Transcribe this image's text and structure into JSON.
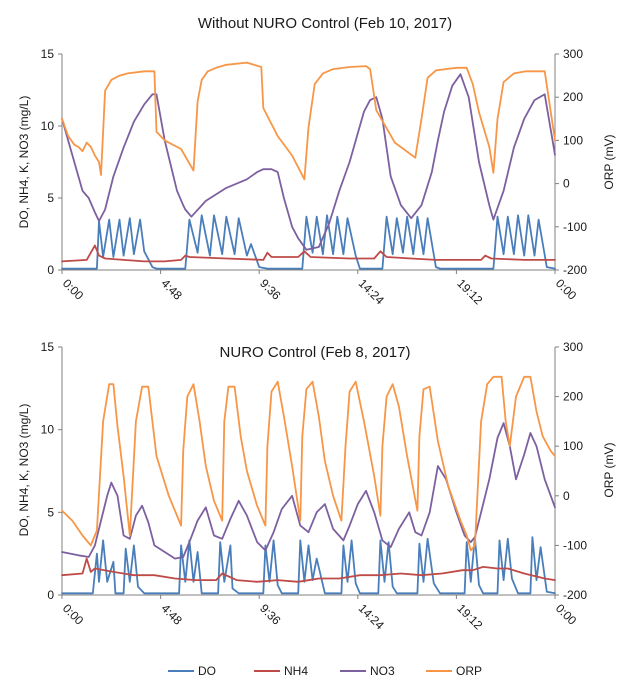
{
  "chart_data": [
    {
      "type": "line",
      "title": "Without NURO Control (Feb 10, 2017)",
      "ylabel": "DO, NH4, K, NO3 (mg/L)",
      "y2label": "ORP (mV)",
      "ylim": [
        0,
        15
      ],
      "y2lim": [
        -200,
        300
      ],
      "yticks": [
        "0",
        "5",
        "10",
        "15"
      ],
      "y2ticks": [
        "-200",
        "-100",
        "0",
        "100",
        "200",
        "300"
      ],
      "xlim": [
        0,
        24
      ],
      "xticks": [
        "0:00",
        "4:48",
        "9:36",
        "14:24",
        "19:12",
        "0:00"
      ],
      "series": [
        {
          "name": "DO",
          "color": "#4a7ebb",
          "axis": "left",
          "x": [
            0,
            1.7,
            1.8,
            2.0,
            2.3,
            2.5,
            2.8,
            3.0,
            3.3,
            3.5,
            3.8,
            4.0,
            4.4,
            4.6,
            6.0,
            6.2,
            6.6,
            6.8,
            7.2,
            7.4,
            7.8,
            8.0,
            8.4,
            8.6,
            9.0,
            9.2,
            9.6,
            10.0,
            11.7,
            11.9,
            12.2,
            12.4,
            12.7,
            12.9,
            13.2,
            13.4,
            13.7,
            13.9,
            14.3,
            14.5,
            15.6,
            15.8,
            16.1,
            16.3,
            16.6,
            16.8,
            17.1,
            17.3,
            17.6,
            17.8,
            18.2,
            18.4,
            21.0,
            21.2,
            21.5,
            21.7,
            22.0,
            22.2,
            22.5,
            22.7,
            23.0,
            23.2,
            23.6,
            24
          ],
          "y": [
            0.1,
            0.1,
            3.4,
            0.9,
            3.5,
            0.9,
            3.5,
            1.0,
            3.6,
            1.1,
            3.5,
            1.3,
            0.2,
            0.1,
            0.1,
            3.5,
            1.2,
            3.8,
            1.0,
            3.8,
            1.1,
            3.7,
            1.1,
            3.6,
            1.0,
            1.8,
            0.2,
            0.1,
            0.1,
            3.7,
            1.2,
            3.7,
            1.1,
            3.8,
            1.1,
            3.7,
            1.1,
            3.6,
            1.0,
            0.1,
            0.1,
            3.7,
            1.1,
            3.6,
            1.2,
            3.7,
            1.1,
            3.7,
            1.1,
            3.6,
            0.2,
            0.1,
            0.1,
            3.7,
            1.1,
            3.7,
            1.1,
            3.8,
            1.0,
            3.8,
            1.0,
            3.5,
            0.2,
            0.1
          ]
        },
        {
          "name": "NH4",
          "color": "#be4b48",
          "axis": "left",
          "x": [
            0,
            1.2,
            1.6,
            1.8,
            2.1,
            3,
            4,
            5,
            5.8,
            6.0,
            6.2,
            8,
            9.8,
            10.0,
            10.2,
            11.5,
            11.8,
            12.1,
            14,
            15.2,
            15.5,
            15.8,
            17,
            18.2,
            20.4,
            20.6,
            20.9,
            22.5,
            24
          ],
          "y": [
            0.6,
            0.7,
            1.7,
            1.0,
            0.8,
            0.7,
            0.6,
            0.6,
            0.7,
            1.0,
            0.9,
            0.8,
            0.7,
            1.2,
            0.9,
            0.9,
            1.3,
            0.9,
            0.8,
            0.8,
            1.3,
            0.9,
            0.8,
            0.7,
            0.7,
            1.0,
            0.8,
            0.7,
            0.7
          ]
        },
        {
          "name": "NO3",
          "color": "#7d60a0",
          "axis": "left",
          "x": [
            0,
            0.4,
            0.8,
            1.0,
            1.3,
            1.6,
            1.8,
            2.1,
            2.5,
            3.0,
            3.5,
            4.0,
            4.4,
            4.6,
            5.0,
            5.6,
            5.9,
            6.0,
            6.3,
            7.0,
            8.0,
            9.0,
            9.5,
            9.8,
            10.2,
            10.5,
            10.8,
            11.2,
            11.5,
            11.9,
            12.5,
            13.0,
            13.5,
            14.0,
            14.4,
            14.7,
            15.0,
            15.3,
            15.6,
            16.0,
            16.5,
            17.0,
            17.5,
            18.0,
            18.3,
            18.6,
            19.0,
            19.4,
            19.8,
            20.3,
            20.8,
            21.0,
            21.5,
            22.0,
            22.5,
            23.0,
            23.5,
            24
          ],
          "y": [
            10.5,
            8.5,
            6.5,
            5.5,
            5.0,
            4.0,
            3.4,
            4.2,
            6.5,
            8.5,
            10.3,
            11.5,
            12.2,
            12.2,
            9.0,
            5.5,
            4.5,
            4.2,
            3.7,
            4.8,
            5.7,
            6.3,
            6.8,
            7.0,
            7.0,
            6.8,
            5.0,
            3.0,
            2.2,
            1.4,
            1.6,
            3.2,
            5.5,
            7.5,
            9.5,
            11.0,
            11.8,
            12.0,
            10.5,
            6.5,
            4.5,
            3.6,
            4.5,
            6.8,
            9.0,
            11.0,
            12.8,
            13.6,
            12.0,
            7.5,
            4.5,
            3.5,
            5.5,
            8.5,
            10.5,
            11.8,
            12.2,
            8.0
          ]
        },
        {
          "name": "ORP",
          "color": "#f79646",
          "axis": "right",
          "x": [
            0,
            0.3,
            0.6,
            0.8,
            1.0,
            1.2,
            1.4,
            1.6,
            1.8,
            1.9,
            2.1,
            2.4,
            2.8,
            3.2,
            4.0,
            4.5,
            4.6,
            5.0,
            5.8,
            6.4,
            6.6,
            6.8,
            7.1,
            7.5,
            8.0,
            9.0,
            9.7,
            9.8,
            10.5,
            11.2,
            11.8,
            12.0,
            12.3,
            12.7,
            13.2,
            14.0,
            14.8,
            15.0,
            15.3,
            16.2,
            17.2,
            17.5,
            17.8,
            18.2,
            19.2,
            19.7,
            20.0,
            20.3,
            20.8,
            21.0,
            21.2,
            21.5,
            22.0,
            22.6,
            23.5,
            24
          ],
          "y": [
            150,
            110,
            90,
            85,
            75,
            95,
            85,
            65,
            50,
            20,
            215,
            240,
            250,
            255,
            260,
            260,
            120,
            100,
            80,
            30,
            190,
            240,
            260,
            268,
            275,
            280,
            270,
            175,
            110,
            65,
            10,
            130,
            230,
            255,
            265,
            270,
            272,
            265,
            170,
            95,
            60,
            150,
            245,
            262,
            268,
            268,
            230,
            165,
            85,
            25,
            150,
            235,
            255,
            260,
            260,
            100
          ]
        }
      ]
    },
    {
      "type": "line",
      "title": "NURO Control (Feb 8, 2017)",
      "ylabel": "DO, NH4, K, NO3 (mg/L)",
      "y2label": "ORP (mV)",
      "ylim": [
        0,
        15
      ],
      "y2lim": [
        -200,
        300
      ],
      "yticks": [
        "0",
        "5",
        "10",
        "15"
      ],
      "y2ticks": [
        "-200",
        "-100",
        "0",
        "100",
        "200",
        "300"
      ],
      "xlim": [
        0,
        24
      ],
      "xticks": [
        "0:00",
        "4:48",
        "9:36",
        "14:24",
        "19:12",
        "0:00"
      ],
      "series": [
        {
          "name": "DO",
          "color": "#4a7ebb",
          "axis": "left",
          "x": [
            0,
            1.5,
            1.7,
            1.8,
            2.0,
            2.2,
            2.5,
            2.6,
            3.0,
            3.1,
            3.3,
            3.5,
            3.7,
            4.0,
            5.7,
            5.8,
            6.0,
            6.2,
            6.4,
            6.6,
            6.8,
            7.6,
            7.7,
            7.9,
            8.2,
            8.3,
            8.6,
            9.8,
            9.9,
            10.1,
            10.3,
            10.5,
            10.7,
            11.5,
            11.6,
            11.8,
            12.0,
            12.2,
            12.4,
            12.8,
            13.6,
            13.7,
            13.9,
            14.1,
            14.3,
            14.5,
            15.4,
            15.5,
            15.7,
            15.9,
            16.1,
            16.3,
            17.3,
            17.4,
            17.6,
            17.8,
            18.1,
            18.4,
            19.6,
            19.7,
            19.9,
            20.1,
            20.3,
            20.5,
            21.2,
            21.3,
            21.5,
            21.7,
            21.9,
            22.2,
            22.8,
            22.9,
            23.1,
            23.3,
            23.6,
            24
          ],
          "y": [
            0.1,
            0.1,
            2.5,
            0.8,
            3.3,
            0.8,
            2.0,
            0.1,
            0.1,
            2.8,
            0.8,
            3.0,
            0.5,
            0.1,
            0.1,
            3.0,
            0.8,
            3.3,
            0.8,
            2.6,
            0.1,
            0.1,
            3.2,
            0.8,
            3.0,
            0.4,
            0.1,
            0.1,
            3.0,
            0.8,
            3.3,
            0.6,
            0.1,
            0.1,
            3.3,
            0.8,
            3.0,
            0.9,
            2.2,
            0.1,
            0.1,
            3.0,
            0.8,
            3.3,
            0.7,
            0.1,
            0.1,
            3.3,
            0.8,
            3.2,
            0.5,
            0.1,
            0.1,
            3.1,
            0.8,
            3.4,
            0.7,
            0.1,
            0.1,
            3.2,
            0.8,
            3.5,
            0.6,
            0.1,
            0.1,
            3.3,
            0.9,
            3.4,
            1.0,
            0.1,
            0.1,
            3.5,
            0.9,
            2.9,
            0.2,
            0.1
          ]
        },
        {
          "name": "NH4",
          "color": "#be4b48",
          "axis": "left",
          "x": [
            0,
            1.0,
            1.2,
            1.4,
            1.6,
            2.5,
            3.5,
            4.5,
            5.5,
            6.5,
            7.5,
            7.8,
            8.5,
            9.5,
            10.5,
            11.5,
            12.5,
            13.5,
            14.5,
            15.5,
            16.5,
            17.5,
            18.5,
            19.5,
            20.0,
            20.5,
            21.2,
            21.7,
            22.5,
            23.5,
            24
          ],
          "y": [
            1.2,
            1.3,
            2.2,
            1.4,
            1.6,
            1.4,
            1.2,
            1.2,
            1.0,
            0.9,
            0.9,
            1.3,
            0.9,
            0.8,
            0.9,
            0.8,
            1.0,
            1.0,
            1.2,
            1.2,
            1.3,
            1.2,
            1.3,
            1.5,
            1.5,
            1.7,
            1.6,
            1.6,
            1.3,
            1.0,
            0.9
          ]
        },
        {
          "name": "NO3",
          "color": "#7d60a0",
          "axis": "left",
          "x": [
            0,
            0.8,
            1.3,
            1.6,
            1.9,
            2.2,
            2.4,
            2.7,
            3.0,
            3.3,
            3.6,
            3.9,
            4.2,
            4.5,
            5.0,
            5.5,
            5.9,
            6.2,
            6.6,
            7.0,
            7.4,
            7.8,
            8.2,
            8.6,
            9.0,
            9.5,
            9.9,
            10.3,
            10.7,
            11.2,
            11.6,
            12.0,
            12.4,
            12.8,
            13.2,
            13.7,
            14.0,
            14.4,
            14.8,
            15.2,
            15.6,
            16.0,
            16.4,
            16.9,
            17.2,
            17.5,
            17.9,
            18.3,
            18.7,
            19.2,
            19.6,
            19.9,
            20.1,
            20.4,
            20.8,
            21.2,
            21.5,
            21.8,
            22.1,
            22.5,
            22.8,
            23.1,
            23.5,
            24
          ],
          "y": [
            2.6,
            2.4,
            2.3,
            3.0,
            4.5,
            6.0,
            6.8,
            6.0,
            3.6,
            3.4,
            4.8,
            5.4,
            4.4,
            3.0,
            2.6,
            2.2,
            2.3,
            3.2,
            4.5,
            5.3,
            3.6,
            3.4,
            4.6,
            5.7,
            4.8,
            3.2,
            2.7,
            3.8,
            5.2,
            6.0,
            4.2,
            3.8,
            5.0,
            5.5,
            4.0,
            3.3,
            4.2,
            5.5,
            6.3,
            5.0,
            3.3,
            2.9,
            4.0,
            5.0,
            3.8,
            3.6,
            5.0,
            7.8,
            7.0,
            5.0,
            3.6,
            3.2,
            3.5,
            5.0,
            7.0,
            9.5,
            10.4,
            9.0,
            7.0,
            8.5,
            9.8,
            9.0,
            7.0,
            5.3
          ]
        },
        {
          "name": "ORP",
          "color": "#f79646",
          "axis": "right",
          "x": [
            0,
            0.5,
            1.0,
            1.4,
            1.7,
            2.0,
            2.3,
            2.5,
            2.7,
            3.0,
            3.3,
            3.6,
            3.9,
            4.2,
            4.6,
            5.2,
            5.8,
            5.9,
            6.1,
            6.4,
            6.7,
            7.0,
            7.4,
            7.8,
            7.9,
            8.1,
            8.4,
            8.7,
            9.0,
            9.5,
            9.9,
            10.0,
            10.2,
            10.5,
            10.8,
            11.2,
            11.6,
            11.7,
            11.9,
            12.2,
            12.5,
            12.8,
            13.2,
            13.6,
            13.8,
            14.0,
            14.3,
            14.7,
            15.2,
            15.5,
            15.6,
            15.8,
            16.1,
            16.4,
            16.8,
            17.3,
            17.4,
            17.6,
            17.9,
            18.3,
            18.8,
            19.4,
            19.7,
            19.9,
            20.1,
            20.4,
            20.7,
            21.0,
            21.4,
            21.6,
            21.8,
            22.1,
            22.5,
            22.8,
            23.1,
            23.4,
            23.8,
            24
          ],
          "y": [
            -30,
            -50,
            -80,
            -100,
            -70,
            150,
            225,
            225,
            140,
            40,
            -80,
            150,
            220,
            220,
            80,
            0,
            -60,
            90,
            200,
            225,
            150,
            60,
            -10,
            -50,
            150,
            220,
            220,
            120,
            50,
            -20,
            -60,
            100,
            210,
            230,
            160,
            60,
            -50,
            120,
            215,
            230,
            160,
            70,
            0,
            -50,
            100,
            210,
            230,
            150,
            40,
            -40,
            100,
            200,
            225,
            180,
            80,
            -30,
            120,
            215,
            220,
            110,
            20,
            -50,
            -80,
            -110,
            -100,
            150,
            225,
            240,
            240,
            150,
            100,
            200,
            240,
            240,
            170,
            120,
            90,
            80
          ]
        }
      ]
    }
  ],
  "legend": {
    "items": [
      {
        "label": "DO",
        "color": "#4a7ebb"
      },
      {
        "label": "NH4",
        "color": "#be4b48"
      },
      {
        "label": "NO3",
        "color": "#7d60a0"
      },
      {
        "label": "ORP",
        "color": "#f79646"
      }
    ]
  }
}
